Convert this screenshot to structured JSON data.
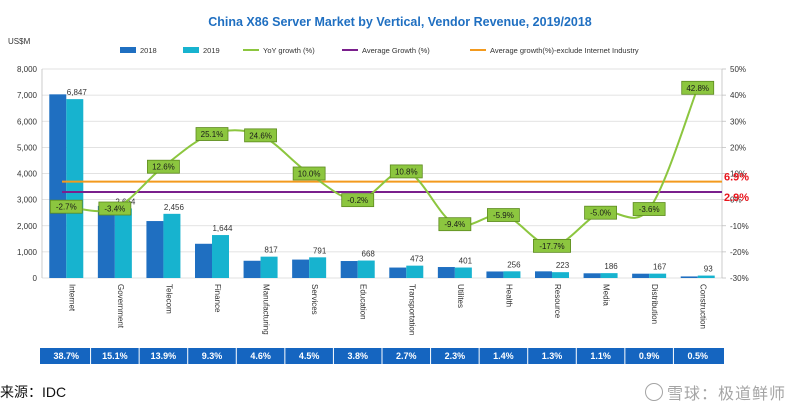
{
  "chart_data": {
    "type": "bar",
    "title": "China X86 Server Market by Vertical, Vendor Revenue, 2019/2018",
    "ylabel": "US$M",
    "ylim": [
      0,
      8000
    ],
    "yticks": [
      "0",
      "1,000",
      "2,000",
      "3,000",
      "4,000",
      "5,000",
      "6,000",
      "7,000",
      "8,000"
    ],
    "y2lim": [
      -30,
      50
    ],
    "y2ticks": [
      "-30%",
      "-20%",
      "-10%",
      "0%",
      "10%",
      "20%",
      "30%",
      "40%",
      "50%"
    ],
    "categories": [
      "Internet",
      "Government",
      "Telecom",
      "Finance",
      "Manufacturing",
      "Services",
      "Education",
      "Transportation",
      "Utilites",
      "Health",
      "Resource",
      "Media",
      "Distribution",
      "Construction"
    ],
    "series": [
      {
        "name": "2018",
        "color": "#1f6fc1",
        "values": [
          7030,
          2760,
          2180,
          1310,
          660,
          705,
          650,
          400,
          420,
          250,
          255,
          180,
          165,
          60
        ]
      },
      {
        "name": "2019",
        "color": "#17b3cf",
        "values": [
          6847,
          2664,
          2456,
          1644,
          817,
          791,
          668,
          473,
          401,
          256,
          223,
          186,
          167,
          93
        ],
        "labels": [
          "6,847",
          "2,664",
          "2,456",
          "1,644",
          "817",
          "791",
          "668",
          "473",
          "401",
          "256",
          "223",
          "186",
          "167",
          "93"
        ]
      },
      {
        "name": "YoY growth (%)",
        "color": "#8cc63f",
        "axis": "right",
        "values": [
          -2.7,
          -3.4,
          12.6,
          25.1,
          24.6,
          10.0,
          -0.2,
          10.8,
          -9.4,
          -5.9,
          -17.7,
          -5.0,
          -3.6,
          42.8
        ],
        "labels": [
          "-2.7%",
          "-3.4%",
          "12.6%",
          "25.1%",
          "24.6%",
          "10.0%",
          "-0.2%",
          "10.8%",
          "-9.4%",
          "-5.9%",
          "-17.7%",
          "-5.0%",
          "-3.6%",
          "42.8%"
        ]
      },
      {
        "name": "Average Growth (%)",
        "color": "#7a1f8c",
        "axis": "right",
        "value": 2.9,
        "label": "2.9%"
      },
      {
        "name": "Average growth(%)-exclude Internet Industry",
        "color": "#f39a1e",
        "axis": "right",
        "value": 6.9,
        "label": "6.9%"
      }
    ],
    "market_share": [
      "38.7%",
      "15.1%",
      "13.9%",
      "9.3%",
      "4.6%",
      "4.5%",
      "3.8%",
      "2.7%",
      "2.3%",
      "1.4%",
      "1.3%",
      "1.1%",
      "0.9%",
      "0.5%"
    ],
    "grid": true,
    "legend_position": "top"
  },
  "source": "来源：IDC",
  "watermark": "雪球：极道鲜师",
  "colors": {
    "title": "#1f6fc1",
    "share_band": "#1565c0",
    "grid": "#d9d9d9",
    "reference_label": "#e8141c"
  }
}
